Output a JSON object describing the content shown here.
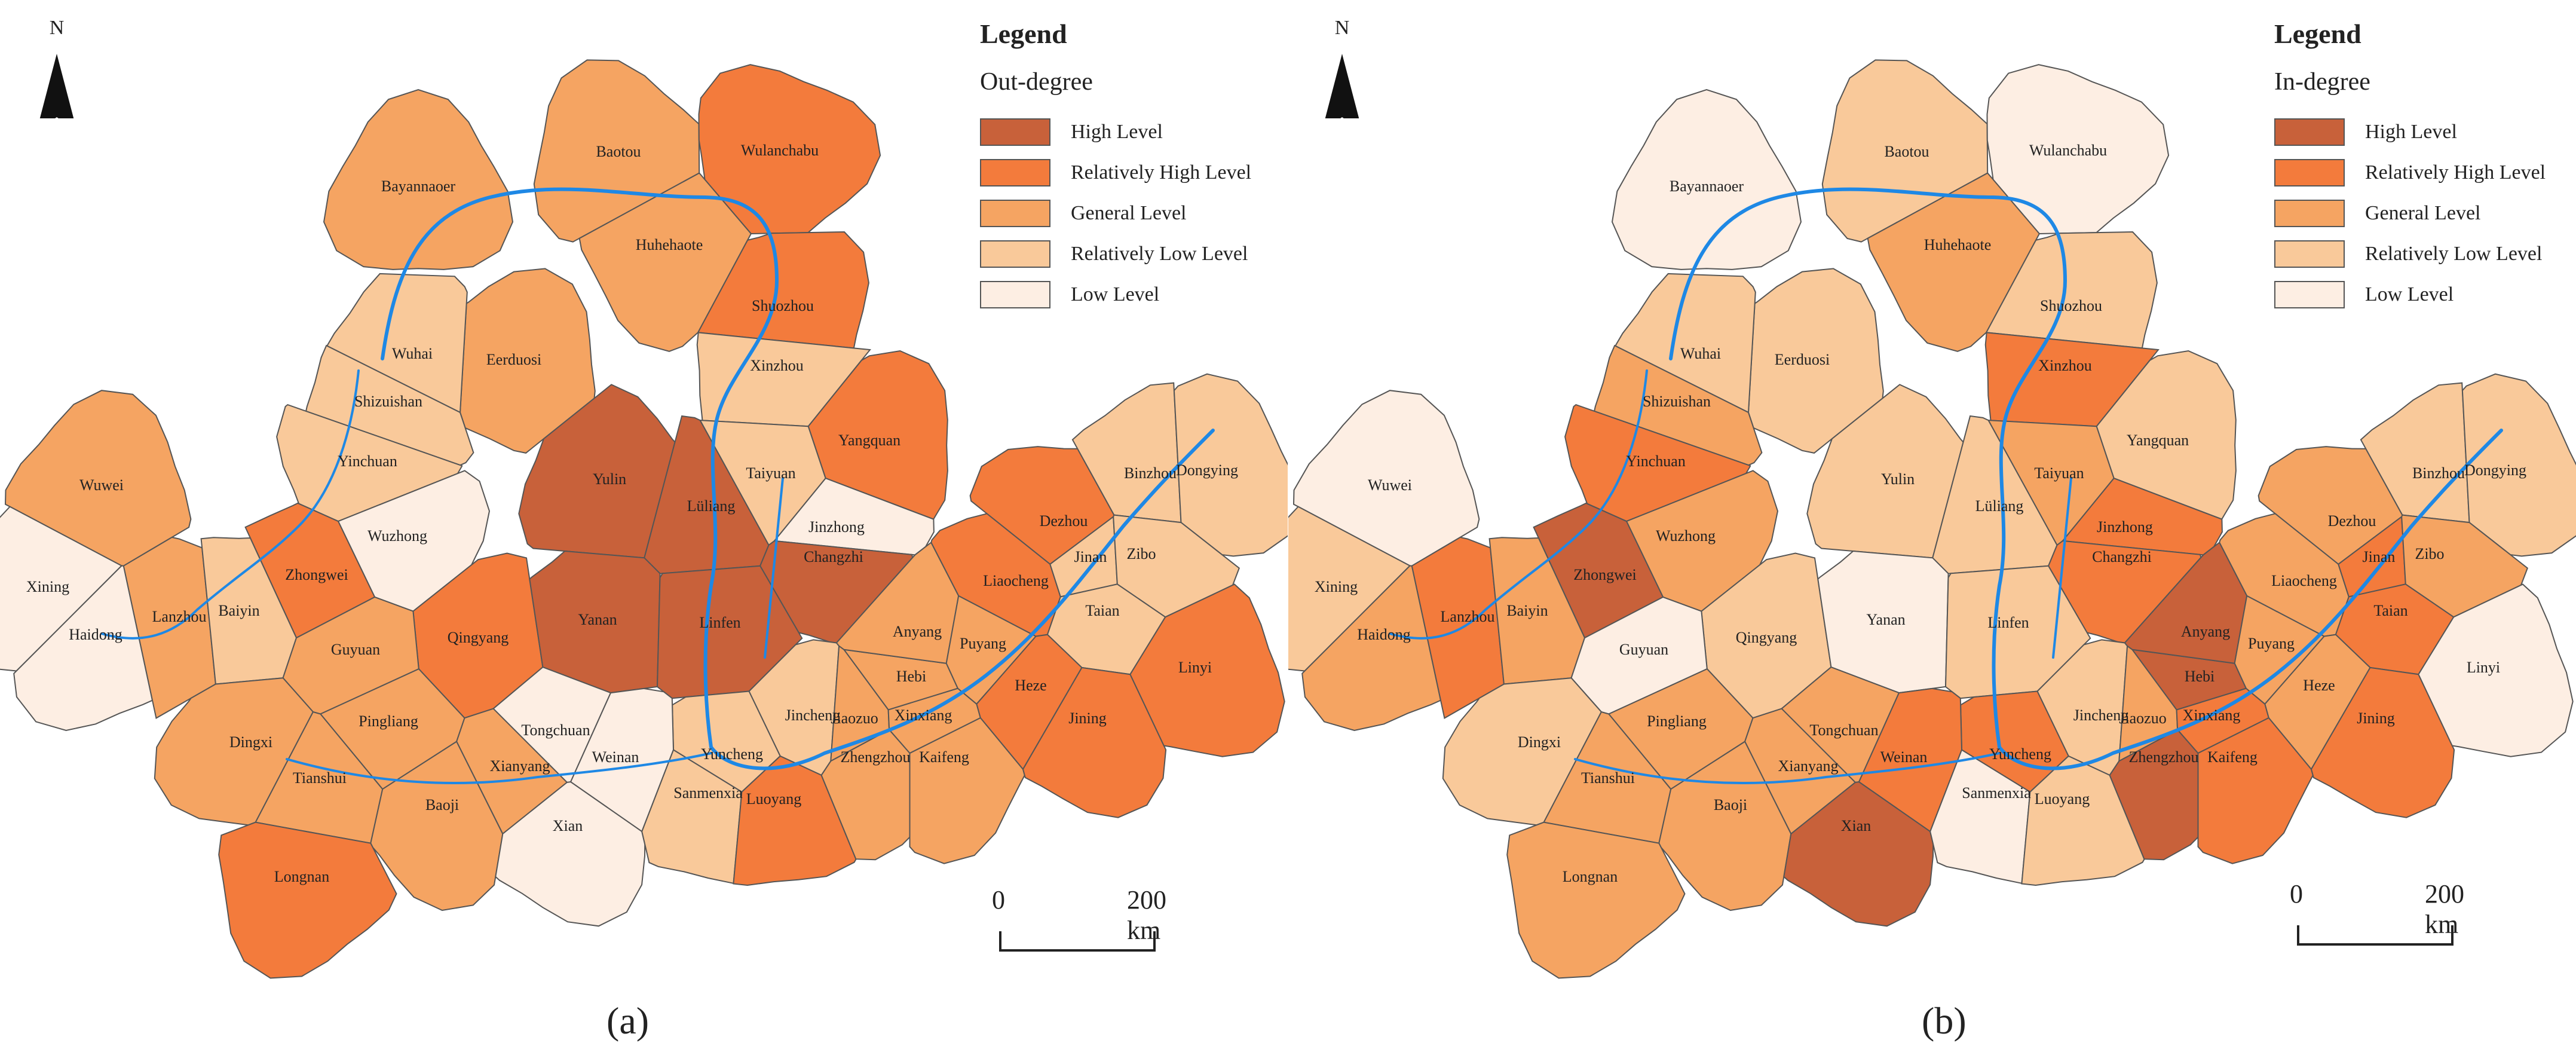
{
  "colors": {
    "high": "#c8613a",
    "relatively_high": "#f37b3c",
    "general": "#f5a462",
    "relatively_low": "#f9c99a",
    "low": "#fdeee3",
    "river": "#1e88e5",
    "border": "#555555"
  },
  "north_label": "N",
  "legend": {
    "title": "Legend",
    "items": [
      {
        "label": "High Level",
        "color": "#c8613a"
      },
      {
        "label": "Relatively High Level",
        "color": "#f37b3c"
      },
      {
        "label": "General Level",
        "color": "#f5a462"
      },
      {
        "label": "Relatively Low Level",
        "color": "#f9c99a"
      },
      {
        "label": "Low Level",
        "color": "#fdeee3"
      }
    ]
  },
  "scale": {
    "zero": "0",
    "distance": "200 km"
  },
  "panels": [
    {
      "label": "(a)",
      "metric": "Out-degree",
      "cities": [
        {
          "name": "Bayannaoer",
          "level": "general"
        },
        {
          "name": "Baotou",
          "level": "general"
        },
        {
          "name": "Wulanchabu",
          "level": "relatively_high"
        },
        {
          "name": "Huhehaote",
          "level": "general"
        },
        {
          "name": "Shuozhou",
          "level": "relatively_high"
        },
        {
          "name": "Eerduosi",
          "level": "general"
        },
        {
          "name": "Wuhai",
          "level": "relatively_low"
        },
        {
          "name": "Shizuishan",
          "level": "relatively_low"
        },
        {
          "name": "Xinzhou",
          "level": "relatively_low"
        },
        {
          "name": "Yinchuan",
          "level": "relatively_low"
        },
        {
          "name": "Taiyuan",
          "level": "relatively_low"
        },
        {
          "name": "Yangquan",
          "level": "relatively_high"
        },
        {
          "name": "Wuwei",
          "level": "general"
        },
        {
          "name": "Yulin",
          "level": "high"
        },
        {
          "name": "Lüliang",
          "level": "high"
        },
        {
          "name": "Jinzhong",
          "level": "low"
        },
        {
          "name": "Wuzhong",
          "level": "low"
        },
        {
          "name": "Zhongwei",
          "level": "relatively_high"
        },
        {
          "name": "Changzhi",
          "level": "high"
        },
        {
          "name": "Xining",
          "level": "low"
        },
        {
          "name": "Haidong",
          "level": "low"
        },
        {
          "name": "Lanzhou",
          "level": "general"
        },
        {
          "name": "Baiyin",
          "level": "relatively_low"
        },
        {
          "name": "Qingyang",
          "level": "relatively_high"
        },
        {
          "name": "Yanan",
          "level": "high"
        },
        {
          "name": "Linfen",
          "level": "high"
        },
        {
          "name": "Guyuan",
          "level": "general"
        },
        {
          "name": "Pingliang",
          "level": "general"
        },
        {
          "name": "Tongchuan",
          "level": "low"
        },
        {
          "name": "Jincheng",
          "level": "relatively_low"
        },
        {
          "name": "Yuncheng",
          "level": "relatively_low"
        },
        {
          "name": "Dingxi",
          "level": "general"
        },
        {
          "name": "Tianshui",
          "level": "general"
        },
        {
          "name": "Xianyang",
          "level": "general"
        },
        {
          "name": "Weinan",
          "level": "low"
        },
        {
          "name": "Baoji",
          "level": "general"
        },
        {
          "name": "Xian",
          "level": "low"
        },
        {
          "name": "Sanmenxia",
          "level": "relatively_low"
        },
        {
          "name": "Luoyang",
          "level": "relatively_high"
        },
        {
          "name": "Jiaozuo",
          "level": "general"
        },
        {
          "name": "Zhengzhou",
          "level": "general"
        },
        {
          "name": "Kaifeng",
          "level": "general"
        },
        {
          "name": "Xinxiang",
          "level": "general"
        },
        {
          "name": "Hebi",
          "level": "general"
        },
        {
          "name": "Anyang",
          "level": "general"
        },
        {
          "name": "Puyang",
          "level": "general"
        },
        {
          "name": "Longnan",
          "level": "relatively_high"
        },
        {
          "name": "Dezhou",
          "level": "relatively_high"
        },
        {
          "name": "Liaocheng",
          "level": "relatively_high"
        },
        {
          "name": "Binzhou",
          "level": "relatively_low"
        },
        {
          "name": "Dongying",
          "level": "relatively_low"
        },
        {
          "name": "Jinan",
          "level": "relatively_low"
        },
        {
          "name": "Zibo",
          "level": "relatively_low"
        },
        {
          "name": "Taian",
          "level": "relatively_low"
        },
        {
          "name": "Heze",
          "level": "relatively_high"
        },
        {
          "name": "Jining",
          "level": "relatively_high"
        },
        {
          "name": "Linyi",
          "level": "relatively_high"
        }
      ]
    },
    {
      "label": "(b)",
      "metric": "In-degree",
      "cities": [
        {
          "name": "Bayannaoer",
          "level": "low"
        },
        {
          "name": "Baotou",
          "level": "relatively_low"
        },
        {
          "name": "Wulanchabu",
          "level": "low"
        },
        {
          "name": "Huhehaote",
          "level": "general"
        },
        {
          "name": "Shuozhou",
          "level": "relatively_low"
        },
        {
          "name": "Eerduosi",
          "level": "relatively_low"
        },
        {
          "name": "Wuhai",
          "level": "relatively_low"
        },
        {
          "name": "Shizuishan",
          "level": "general"
        },
        {
          "name": "Xinzhou",
          "level": "relatively_high"
        },
        {
          "name": "Yinchuan",
          "level": "relatively_high"
        },
        {
          "name": "Taiyuan",
          "level": "general"
        },
        {
          "name": "Yangquan",
          "level": "relatively_low"
        },
        {
          "name": "Wuwei",
          "level": "low"
        },
        {
          "name": "Yulin",
          "level": "relatively_low"
        },
        {
          "name": "Lüliang",
          "level": "relatively_low"
        },
        {
          "name": "Jinzhong",
          "level": "relatively_high"
        },
        {
          "name": "Wuzhong",
          "level": "general"
        },
        {
          "name": "Zhongwei",
          "level": "high"
        },
        {
          "name": "Changzhi",
          "level": "relatively_high"
        },
        {
          "name": "Xining",
          "level": "relatively_low"
        },
        {
          "name": "Haidong",
          "level": "general"
        },
        {
          "name": "Lanzhou",
          "level": "relatively_high"
        },
        {
          "name": "Baiyin",
          "level": "general"
        },
        {
          "name": "Qingyang",
          "level": "relatively_low"
        },
        {
          "name": "Yanan",
          "level": "low"
        },
        {
          "name": "Linfen",
          "level": "relatively_low"
        },
        {
          "name": "Guyuan",
          "level": "low"
        },
        {
          "name": "Pingliang",
          "level": "general"
        },
        {
          "name": "Tongchuan",
          "level": "general"
        },
        {
          "name": "Jincheng",
          "level": "relatively_low"
        },
        {
          "name": "Yuncheng",
          "level": "relatively_high"
        },
        {
          "name": "Dingxi",
          "level": "relatively_low"
        },
        {
          "name": "Tianshui",
          "level": "general"
        },
        {
          "name": "Xianyang",
          "level": "general"
        },
        {
          "name": "Weinan",
          "level": "relatively_high"
        },
        {
          "name": "Baoji",
          "level": "general"
        },
        {
          "name": "Xian",
          "level": "high"
        },
        {
          "name": "Sanmenxia",
          "level": "low"
        },
        {
          "name": "Luoyang",
          "level": "relatively_low"
        },
        {
          "name": "Jiaozuo",
          "level": "general"
        },
        {
          "name": "Zhengzhou",
          "level": "high"
        },
        {
          "name": "Kaifeng",
          "level": "relatively_high"
        },
        {
          "name": "Xinxiang",
          "level": "relatively_high"
        },
        {
          "name": "Hebi",
          "level": "high"
        },
        {
          "name": "Anyang",
          "level": "high"
        },
        {
          "name": "Puyang",
          "level": "general"
        },
        {
          "name": "Longnan",
          "level": "general"
        },
        {
          "name": "Dezhou",
          "level": "general"
        },
        {
          "name": "Liaocheng",
          "level": "general"
        },
        {
          "name": "Binzhou",
          "level": "relatively_low"
        },
        {
          "name": "Dongying",
          "level": "relatively_low"
        },
        {
          "name": "Jinan",
          "level": "relatively_high"
        },
        {
          "name": "Zibo",
          "level": "general"
        },
        {
          "name": "Taian",
          "level": "relatively_high"
        },
        {
          "name": "Heze",
          "level": "general"
        },
        {
          "name": "Jining",
          "level": "relatively_high"
        },
        {
          "name": "Linyi",
          "level": "low"
        }
      ]
    }
  ]
}
